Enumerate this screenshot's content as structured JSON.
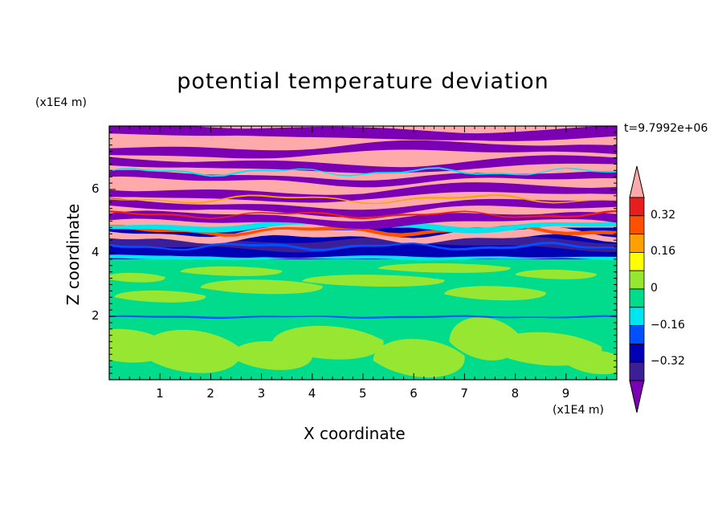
{
  "chart_data": {
    "type": "heatmap",
    "title": "potential temperature deviation",
    "xlabel": "X coordinate",
    "ylabel": "Z coordinate",
    "x_unit": "(x1E4 m)",
    "y_unit": "(x1E4 m)",
    "annotation": "t=9.7992e+06",
    "xlim": [
      0,
      10
    ],
    "ylim": [
      0,
      8
    ],
    "x_ticks": [
      "1",
      "2",
      "3",
      "4",
      "5",
      "6",
      "7",
      "8",
      "9"
    ],
    "y_ticks": [
      "2",
      "4",
      "6"
    ],
    "colorbar": {
      "labels": [
        "0.32",
        "0.16",
        "0",
        "−0.16",
        "−0.32"
      ],
      "colors": [
        "#7B00B4",
        "#3C1E96",
        "#0000B4",
        "#0050FF",
        "#00E6F0",
        "#00DC8C",
        "#96E632",
        "#FFFF00",
        "#FFA000",
        "#FF5000",
        "#E61E1E",
        "#FFAAAA"
      ]
    },
    "regions": [
      {
        "zmin": 0.0,
        "zmax": 3.8,
        "dominant": "#00DC8C",
        "secondary": "#96E632"
      },
      {
        "zmin": 3.8,
        "zmax": 4.8,
        "dominant": "#0000B4",
        "secondary": "#FFAAAA"
      },
      {
        "zmin": 4.8,
        "zmax": 8.0,
        "dominant": "#FFAAAA",
        "secondary": "#7B00B4"
      }
    ]
  }
}
